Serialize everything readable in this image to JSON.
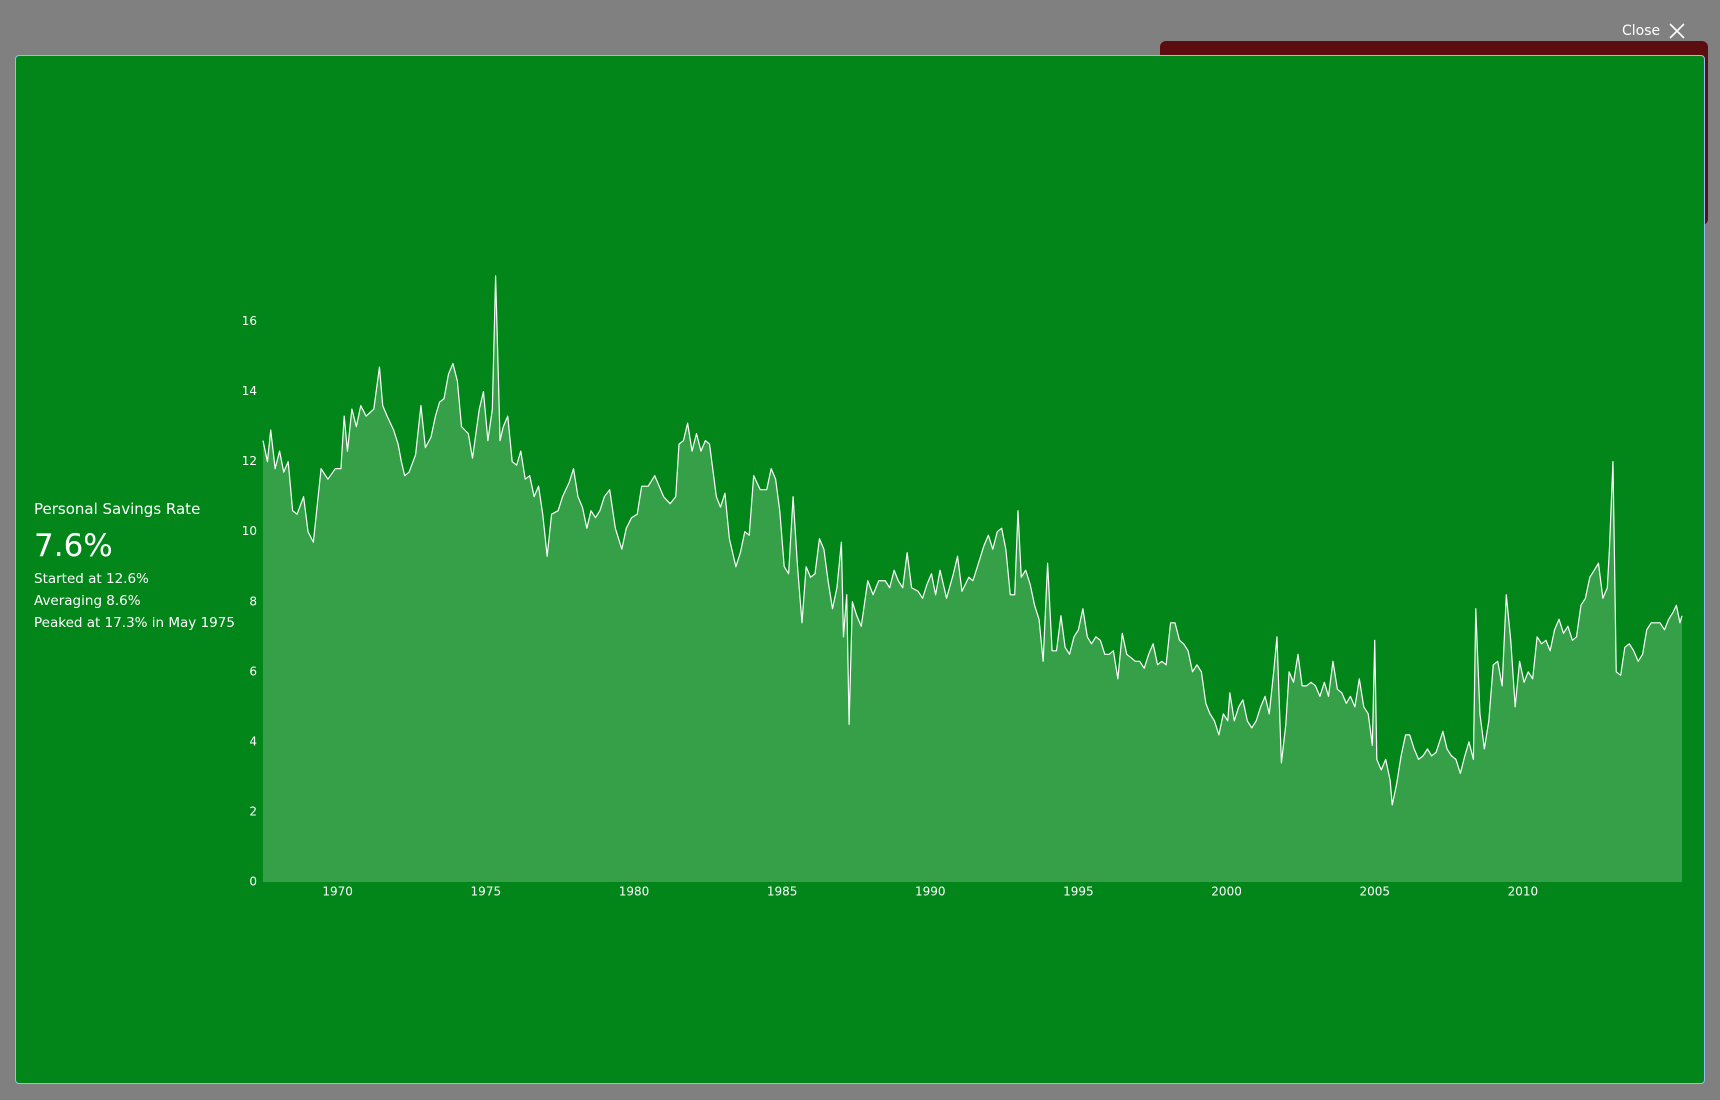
{
  "close": "Close",
  "panel": {
    "title": "Personal Savings Rate",
    "value": "7.6%",
    "started": "Started at 12.6%",
    "averaging": "Averaging 8.6%",
    "peaked": "Peaked at 17.3% in May 1975"
  },
  "chart_data": {
    "type": "area",
    "color": "#ffffff",
    "fill": "#36a049",
    "xlim": [
      1967.48,
      2015.37
    ],
    "ylim": [
      0,
      17.3
    ],
    "xticks": [
      1970,
      1975,
      1980,
      1985,
      1990,
      1995,
      2000,
      2005,
      2010
    ],
    "yticks": [
      0,
      2,
      4,
      6,
      8,
      10,
      12,
      14,
      16
    ],
    "x": [
      1967.48,
      1967.63,
      1967.74,
      1967.89,
      1968.04,
      1968.18,
      1968.33,
      1968.48,
      1968.63,
      1968.85,
      1969.0,
      1969.18,
      1969.44,
      1969.67,
      1969.92,
      1970.11,
      1970.22,
      1970.33,
      1970.48,
      1970.63,
      1970.78,
      1970.96,
      1971.22,
      1971.41,
      1971.52,
      1971.67,
      1971.89,
      1972.04,
      1972.15,
      1972.26,
      1972.41,
      1972.63,
      1972.81,
      1972.96,
      1973.15,
      1973.3,
      1973.44,
      1973.59,
      1973.74,
      1973.89,
      1974.04,
      1974.18,
      1974.41,
      1974.55,
      1974.78,
      1974.92,
      1975.07,
      1975.22,
      1975.33,
      1975.42,
      1975.48,
      1975.59,
      1975.74,
      1975.89,
      1976.04,
      1976.18,
      1976.33,
      1976.48,
      1976.63,
      1976.78,
      1976.92,
      1977.07,
      1977.22,
      1977.44,
      1977.59,
      1977.81,
      1977.96,
      1978.11,
      1978.26,
      1978.41,
      1978.55,
      1978.7,
      1978.85,
      1979.0,
      1979.18,
      1979.37,
      1979.59,
      1979.74,
      1979.92,
      1980.11,
      1980.26,
      1980.48,
      1980.7,
      1980.85,
      1981.0,
      1981.22,
      1981.41,
      1981.52,
      1981.67,
      1981.81,
      1981.96,
      1982.11,
      1982.26,
      1982.41,
      1982.55,
      1982.78,
      1982.92,
      1983.07,
      1983.22,
      1983.44,
      1983.59,
      1983.74,
      1983.89,
      1984.04,
      1984.26,
      1984.48,
      1984.63,
      1984.78,
      1984.92,
      1985.07,
      1985.22,
      1985.37,
      1985.52,
      1985.67,
      1985.81,
      1985.96,
      1986.11,
      1986.26,
      1986.41,
      1986.55,
      1986.7,
      1986.85,
      1987.0,
      1987.07,
      1987.18,
      1987.26,
      1987.37,
      1987.52,
      1987.67,
      1987.89,
      1988.07,
      1988.26,
      1988.48,
      1988.63,
      1988.78,
      1988.92,
      1989.07,
      1989.22,
      1989.37,
      1989.59,
      1989.74,
      1989.89,
      1990.04,
      1990.18,
      1990.33,
      1990.55,
      1990.78,
      1990.92,
      1991.07,
      1991.3,
      1991.44,
      1991.59,
      1991.81,
      1991.96,
      1992.11,
      1992.26,
      1992.41,
      1992.55,
      1992.7,
      1992.85,
      1992.96,
      1993.07,
      1993.22,
      1993.37,
      1993.52,
      1993.67,
      1993.81,
      1993.96,
      1994.11,
      1994.26,
      1994.41,
      1994.55,
      1994.7,
      1994.85,
      1995.0,
      1995.15,
      1995.3,
      1995.44,
      1995.59,
      1995.74,
      1995.89,
      1996.04,
      1996.18,
      1996.33,
      1996.48,
      1996.63,
      1996.78,
      1996.92,
      1997.07,
      1997.22,
      1997.37,
      1997.52,
      1997.67,
      1997.81,
      1997.96,
      1998.11,
      1998.26,
      1998.41,
      1998.55,
      1998.7,
      1998.85,
      1999.0,
      1999.15,
      1999.3,
      1999.44,
      1999.59,
      1999.74,
      1999.89,
      2000.04,
      2000.11,
      2000.26,
      2000.41,
      2000.55,
      2000.7,
      2000.85,
      2001.0,
      2001.15,
      2001.3,
      2001.44,
      2001.59,
      2001.7,
      2001.85,
      2002.0,
      2002.11,
      2002.26,
      2002.41,
      2002.55,
      2002.7,
      2002.85,
      2003.0,
      2003.15,
      2003.3,
      2003.44,
      2003.59,
      2003.74,
      2003.89,
      2004.04,
      2004.18,
      2004.33,
      2004.48,
      2004.63,
      2004.78,
      2004.92,
      2005.0,
      2005.07,
      2005.22,
      2005.37,
      2005.52,
      2005.59,
      2005.74,
      2005.89,
      2006.04,
      2006.18,
      2006.33,
      2006.48,
      2006.63,
      2006.78,
      2006.92,
      2007.07,
      2007.3,
      2007.44,
      2007.59,
      2007.74,
      2007.89,
      2008.04,
      2008.18,
      2008.33,
      2008.41,
      2008.55,
      2008.7,
      2008.85,
      2009.0,
      2009.15,
      2009.3,
      2009.44,
      2009.59,
      2009.74,
      2009.89,
      2010.04,
      2010.18,
      2010.33,
      2010.48,
      2010.63,
      2010.78,
      2010.92,
      2011.07,
      2011.22,
      2011.37,
      2011.52,
      2011.67,
      2011.81,
      2011.96,
      2012.11,
      2012.26,
      2012.41,
      2012.55,
      2012.7,
      2012.85,
      2012.92,
      2013.04,
      2013.15,
      2013.3,
      2013.44,
      2013.59,
      2013.74,
      2013.89,
      2014.04,
      2014.18,
      2014.33,
      2014.48,
      2014.63,
      2014.78,
      2014.92,
      2015.07,
      2015.18,
      2015.3,
      2015.37
    ],
    "values": [
      12.6,
      12.0,
      12.9,
      11.8,
      12.3,
      11.7,
      12.0,
      10.6,
      10.5,
      11.0,
      10.0,
      9.7,
      11.8,
      11.5,
      11.8,
      11.8,
      13.3,
      12.3,
      13.5,
      13.0,
      13.6,
      13.3,
      13.5,
      14.7,
      13.6,
      13.3,
      12.9,
      12.5,
      12.0,
      11.6,
      11.7,
      12.2,
      13.6,
      12.4,
      12.7,
      13.3,
      13.7,
      13.8,
      14.5,
      14.8,
      14.3,
      13.0,
      12.8,
      12.1,
      13.5,
      14.0,
      12.6,
      13.5,
      17.3,
      14.5,
      12.6,
      13.0,
      13.3,
      12.0,
      11.9,
      12.3,
      11.5,
      11.6,
      11.0,
      11.3,
      10.5,
      9.3,
      10.5,
      10.6,
      11.0,
      11.4,
      11.8,
      11.0,
      10.7,
      10.1,
      10.6,
      10.4,
      10.6,
      11.0,
      11.2,
      10.1,
      9.5,
      10.1,
      10.4,
      10.5,
      11.3,
      11.3,
      11.6,
      11.3,
      11.0,
      10.8,
      11.0,
      12.5,
      12.6,
      13.1,
      12.3,
      12.8,
      12.3,
      12.6,
      12.5,
      11.0,
      10.7,
      11.1,
      9.8,
      9.0,
      9.4,
      10.0,
      9.9,
      11.6,
      11.2,
      11.2,
      11.8,
      11.5,
      10.6,
      9.0,
      8.8,
      11.0,
      9.0,
      7.4,
      9.0,
      8.7,
      8.8,
      9.8,
      9.5,
      8.6,
      7.8,
      8.4,
      9.7,
      7.0,
      8.2,
      4.5,
      8.0,
      7.6,
      7.3,
      8.6,
      8.2,
      8.6,
      8.6,
      8.4,
      8.9,
      8.6,
      8.4,
      9.4,
      8.4,
      8.3,
      8.1,
      8.5,
      8.8,
      8.2,
      8.9,
      8.1,
      8.8,
      9.3,
      8.3,
      8.7,
      8.6,
      9.0,
      9.6,
      9.9,
      9.5,
      10.0,
      10.1,
      9.5,
      8.2,
      8.2,
      10.6,
      8.7,
      8.9,
      8.5,
      7.9,
      7.5,
      6.3,
      9.1,
      6.6,
      6.6,
      7.6,
      6.7,
      6.5,
      7.0,
      7.2,
      7.8,
      7.0,
      6.8,
      7.0,
      6.9,
      6.5,
      6.5,
      6.6,
      5.8,
      7.1,
      6.5,
      6.4,
      6.3,
      6.3,
      6.1,
      6.5,
      6.8,
      6.2,
      6.3,
      6.2,
      7.4,
      7.4,
      6.9,
      6.8,
      6.6,
      6.0,
      6.2,
      6.0,
      5.1,
      4.8,
      4.6,
      4.2,
      4.8,
      4.6,
      5.4,
      4.6,
      5.0,
      5.2,
      4.6,
      4.4,
      4.6,
      5.0,
      5.3,
      4.8,
      6.0,
      7.0,
      3.4,
      4.5,
      6.0,
      5.7,
      6.5,
      5.6,
      5.6,
      5.7,
      5.6,
      5.3,
      5.7,
      5.3,
      6.3,
      5.5,
      5.4,
      5.1,
      5.3,
      5.0,
      5.8,
      5.0,
      4.8,
      3.9,
      6.9,
      3.5,
      3.2,
      3.5,
      2.9,
      2.2,
      2.8,
      3.6,
      4.2,
      4.2,
      3.8,
      3.5,
      3.6,
      3.8,
      3.6,
      3.7,
      4.3,
      3.8,
      3.6,
      3.5,
      3.1,
      3.6,
      4.0,
      3.5,
      7.8,
      4.8,
      3.8,
      4.6,
      6.2,
      6.3,
      5.6,
      8.2,
      6.9,
      5.0,
      6.3,
      5.7,
      6.0,
      5.8,
      7.0,
      6.8,
      6.9,
      6.6,
      7.2,
      7.5,
      7.1,
      7.3,
      6.9,
      7.0,
      7.9,
      8.1,
      8.7,
      8.9,
      9.1,
      8.1,
      8.4,
      9.5,
      12.0,
      6.0,
      5.9,
      6.7,
      6.8,
      6.6,
      6.3,
      6.5,
      7.2,
      7.4,
      7.4,
      7.4,
      7.2,
      7.5,
      7.7,
      7.9,
      7.4,
      7.6
    ]
  }
}
